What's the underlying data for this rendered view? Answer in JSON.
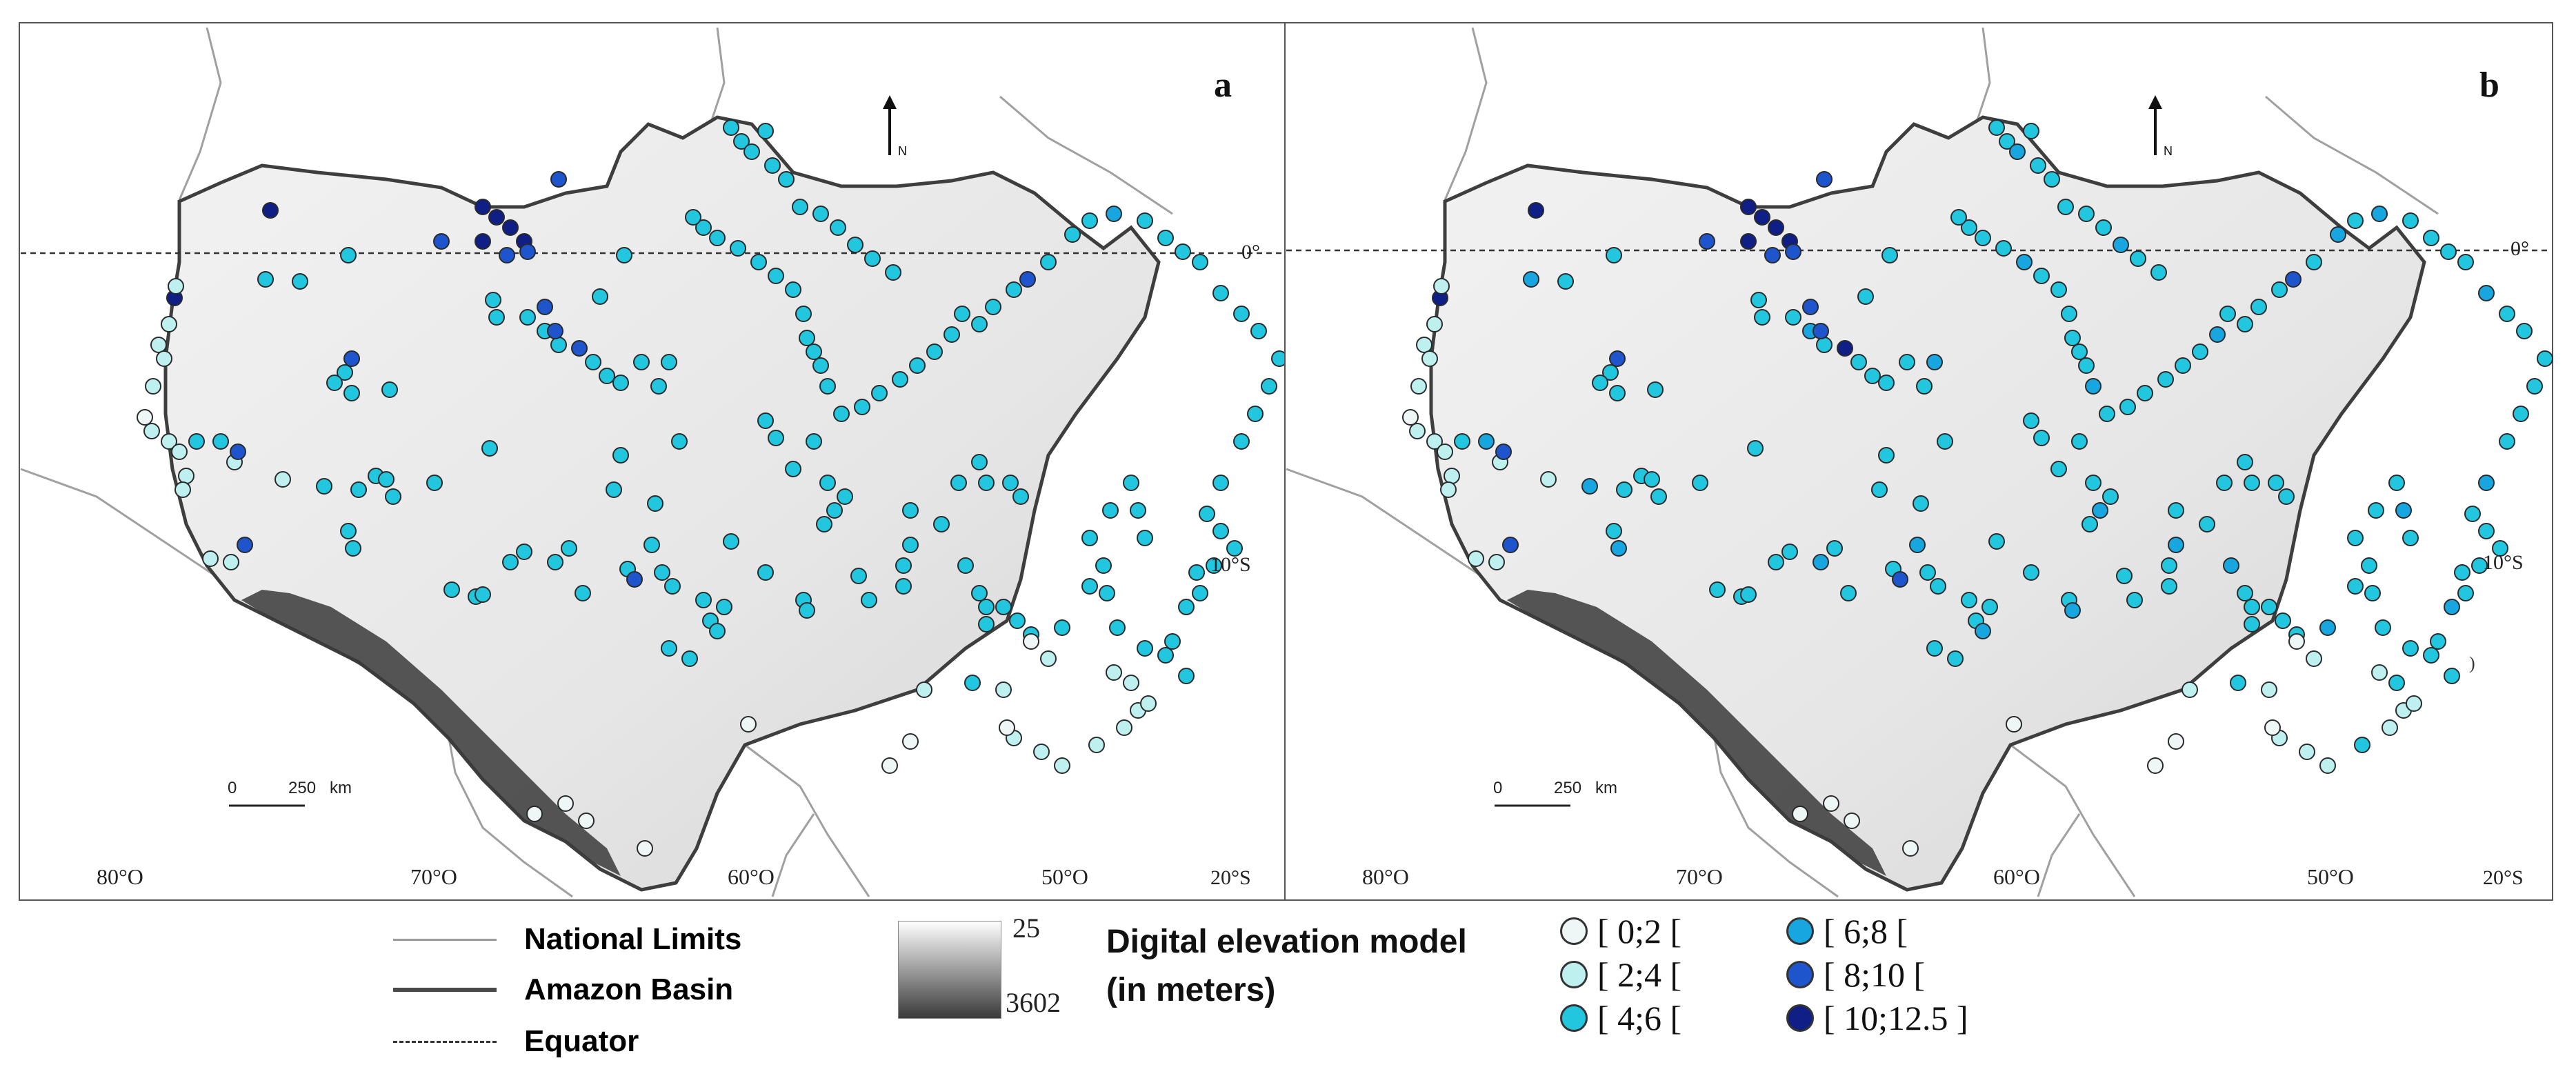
{
  "panels": [
    {
      "id": "a",
      "label": "a"
    },
    {
      "id": "b",
      "label": "b"
    }
  ],
  "map_labels": {
    "lon_ticks": [
      "80°O",
      "70°O",
      "60°O",
      "50°O"
    ],
    "lat_ticks": [
      "0°",
      "10°S",
      "20°S"
    ],
    "north_arrow": "N",
    "scale_zero": "0",
    "scale_value": "250",
    "scale_unit": "km",
    "stray_mark": ")"
  },
  "legend": {
    "lines": [
      {
        "label": "National Limits",
        "color": "#9a9a9a"
      },
      {
        "label": "Amazon Basin",
        "color": "#4a4a4a"
      },
      {
        "label": "Equator",
        "color": "#333333"
      }
    ],
    "dem": {
      "min": "25",
      "max": "3602",
      "title_1": "Digital elevation model",
      "title_2": "(in meters)"
    },
    "classes": [
      {
        "label": "[ 0;2 [",
        "color": "#eef7f6"
      },
      {
        "label": "[ 2;4 [",
        "color": "#bff0f0"
      },
      {
        "label": "[ 4;6 [",
        "color": "#22c7df"
      },
      {
        "label": "[ 6;8 [",
        "color": "#18a6e0"
      },
      {
        "label": "[ 8;10 [",
        "color": "#1f55cc"
      },
      {
        "label": "[ 10;12.5 ]",
        "color": "#0f1f86"
      }
    ]
  }
}
